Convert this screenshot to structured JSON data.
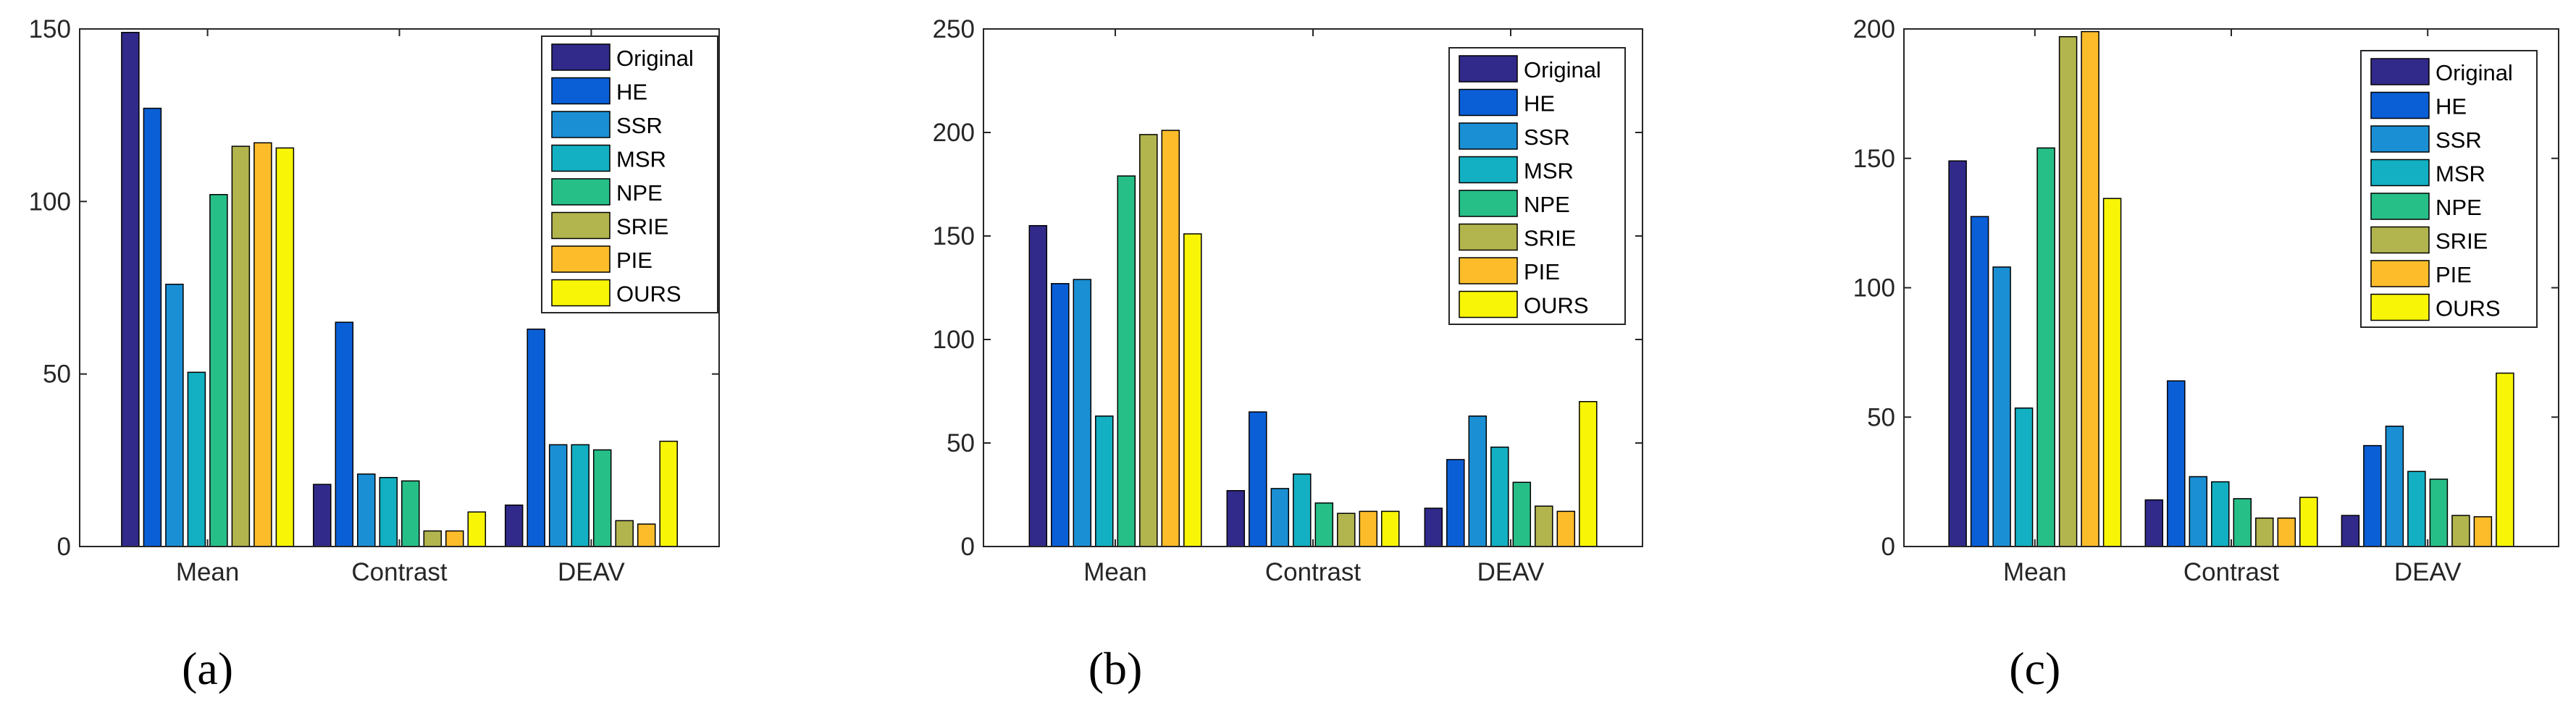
{
  "series_names": [
    "Original",
    "HE",
    "SSR",
    "MSR",
    "NPE",
    "SRIE",
    "PIE",
    "OURS"
  ],
  "series_colors": [
    "#312a8a",
    "#0a5fd6",
    "#1a8fd4",
    "#12b0c2",
    "#27bf88",
    "#b2b44e",
    "#fdbd2a",
    "#f8f507"
  ],
  "chart_data": [
    {
      "type": "bar",
      "panel_label": "(a)",
      "categories": [
        "Mean",
        "Contrast",
        "DEAV"
      ],
      "ylim": [
        0,
        150
      ],
      "yticks": [
        "0",
        "50",
        "100",
        "150"
      ],
      "series": [
        {
          "name": "Original",
          "values": [
            149,
            18,
            12
          ]
        },
        {
          "name": "HE",
          "values": [
            127,
            65,
            63
          ]
        },
        {
          "name": "SSR",
          "values": [
            76,
            21,
            29.5
          ]
        },
        {
          "name": "MSR",
          "values": [
            50.5,
            20,
            29.5
          ]
        },
        {
          "name": "NPE",
          "values": [
            102,
            19,
            28
          ]
        },
        {
          "name": "SRIE",
          "values": [
            116,
            4.5,
            7.5
          ]
        },
        {
          "name": "PIE",
          "values": [
            117,
            4.5,
            6.5
          ]
        },
        {
          "name": "OURS",
          "values": [
            115.5,
            10,
            30.5
          ]
        }
      ]
    },
    {
      "type": "bar",
      "panel_label": "(b)",
      "categories": [
        "Mean",
        "Contrast",
        "DEAV"
      ],
      "ylim": [
        0,
        250
      ],
      "yticks": [
        "0",
        "50",
        "100",
        "150",
        "200",
        "250"
      ],
      "series": [
        {
          "name": "Original",
          "values": [
            155,
            27,
            18.5
          ]
        },
        {
          "name": "HE",
          "values": [
            127,
            65,
            42
          ]
        },
        {
          "name": "SSR",
          "values": [
            129,
            28,
            63
          ]
        },
        {
          "name": "MSR",
          "values": [
            63,
            35,
            48
          ]
        },
        {
          "name": "NPE",
          "values": [
            179,
            21,
            31
          ]
        },
        {
          "name": "SRIE",
          "values": [
            199,
            16,
            19.5
          ]
        },
        {
          "name": "PIE",
          "values": [
            201,
            17,
            17
          ]
        },
        {
          "name": "OURS",
          "values": [
            151,
            17,
            70
          ]
        }
      ]
    },
    {
      "type": "bar",
      "panel_label": "(c)",
      "categories": [
        "Mean",
        "Contrast",
        "DEAV"
      ],
      "ylim": [
        0,
        200
      ],
      "yticks": [
        "0",
        "50",
        "100",
        "150",
        "200"
      ],
      "series": [
        {
          "name": "Original",
          "values": [
            149,
            18,
            12
          ]
        },
        {
          "name": "HE",
          "values": [
            127.5,
            64,
            39
          ]
        },
        {
          "name": "SSR",
          "values": [
            108,
            27,
            46.5
          ]
        },
        {
          "name": "MSR",
          "values": [
            53.5,
            25,
            29
          ]
        },
        {
          "name": "NPE",
          "values": [
            154,
            18.5,
            26
          ]
        },
        {
          "name": "SRIE",
          "values": [
            197,
            11,
            12
          ]
        },
        {
          "name": "PIE",
          "values": [
            199,
            11,
            11.5
          ]
        },
        {
          "name": "OURS",
          "values": [
            134.5,
            19,
            67
          ]
        }
      ]
    }
  ]
}
